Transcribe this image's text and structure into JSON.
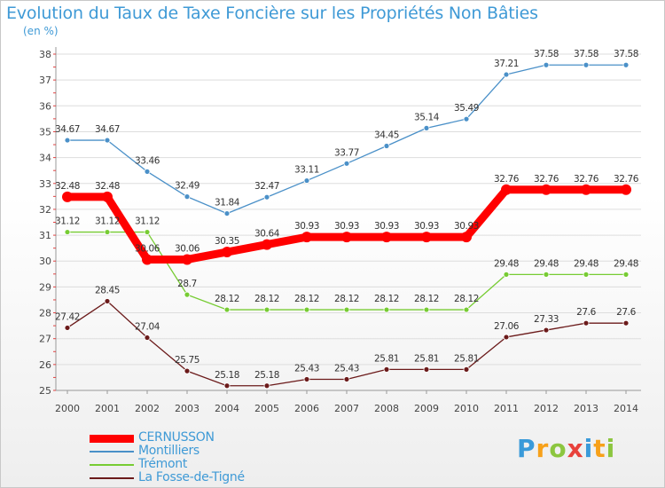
{
  "chart_data": {
    "type": "line",
    "title": "Evolution du Taux de Taxe Foncière sur les Propriétés Non Bâties",
    "ylabel": "(en %)",
    "xlabel": "",
    "ylim": [
      25,
      38
    ],
    "yticks": [
      25,
      26,
      27,
      28,
      29,
      30,
      31,
      32,
      33,
      34,
      35,
      36,
      37,
      38
    ],
    "categories": [
      "2000",
      "2001",
      "2002",
      "2003",
      "2004",
      "2005",
      "2006",
      "2007",
      "2008",
      "2009",
      "2010",
      "2011",
      "2012",
      "2013",
      "2014"
    ],
    "series": [
      {
        "name": "CERNUSSON",
        "color": "#ff0000",
        "values": [
          32.48,
          32.48,
          30.06,
          30.06,
          30.35,
          30.64,
          30.93,
          30.93,
          30.93,
          30.93,
          30.93,
          32.76,
          32.76,
          32.76,
          32.76
        ],
        "labels": [
          "32.48",
          "32.48",
          "30.06",
          "30.06",
          "30.35",
          "30.64",
          "30.93",
          "30.93",
          "30.93",
          "30.93",
          "30.93",
          "32.76",
          "32.76",
          "32.76",
          "32.76"
        ]
      },
      {
        "name": "Montilliers",
        "color": "#4a90c8",
        "values": [
          34.67,
          34.67,
          33.46,
          32.49,
          31.84,
          32.47,
          33.11,
          33.77,
          34.45,
          35.14,
          35.49,
          37.21,
          37.58,
          37.58,
          37.58
        ],
        "labels": [
          "34.67",
          "34.67",
          "33.46",
          "32.49",
          "31.84",
          "32.47",
          "33.11",
          "33.77",
          "34.45",
          "35.14",
          "35.49",
          "37.21",
          "37.58",
          "37.58",
          "37.58"
        ]
      },
      {
        "name": "Trémont",
        "color": "#77cc33",
        "values": [
          31.12,
          31.12,
          31.12,
          28.7,
          28.12,
          28.12,
          28.12,
          28.12,
          28.12,
          28.12,
          28.12,
          29.48,
          29.48,
          29.48,
          29.48
        ],
        "labels": [
          "31.12",
          "31.12",
          "31.12",
          "28.7",
          "28.12",
          "28.12",
          "28.12",
          "28.12",
          "28.12",
          "28.12",
          "28.12",
          "29.48",
          "29.48",
          "29.48",
          "29.48"
        ]
      },
      {
        "name": "La Fosse-de-Tigné",
        "color": "#6b1a1a",
        "values": [
          27.42,
          28.45,
          27.04,
          25.75,
          25.18,
          25.18,
          25.43,
          25.43,
          25.81,
          25.81,
          25.81,
          27.06,
          27.33,
          27.6,
          27.6
        ],
        "labels": [
          "27.42",
          "28.45",
          "27.04",
          "25.75",
          "25.18",
          "25.18",
          "25.43",
          "25.43",
          "25.81",
          "25.81",
          "25.81",
          "27.06",
          "27.33",
          "27.6",
          "27.6"
        ]
      }
    ],
    "legend": "bottom-left"
  },
  "brand": {
    "letters": [
      "P",
      "r",
      "o",
      "x",
      "i",
      "t",
      "i"
    ],
    "colors": [
      "#3a9ad9",
      "#f7a11a",
      "#8cc63f",
      "#e8413b",
      "#3a9ad9",
      "#f7a11a",
      "#8cc63f"
    ]
  }
}
